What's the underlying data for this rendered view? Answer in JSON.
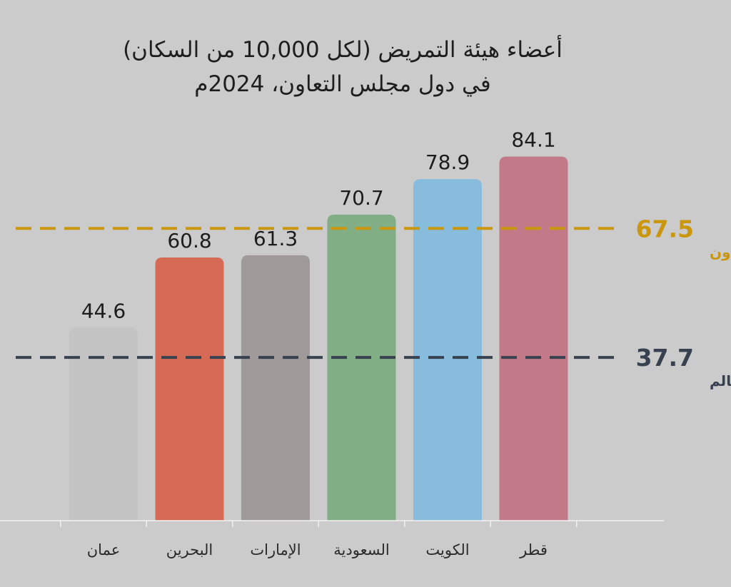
{
  "chart_data": {
    "type": "bar",
    "title_lines": [
      "أعضاء هيئة التمريض (لكل 10,000 من السكان)",
      "في دول مجلس التعاون، 2024م"
    ],
    "categories": [
      "عمان",
      "البحرين",
      "الإمارات",
      "السعودية",
      "الكويت",
      "قطر"
    ],
    "values": [
      44.6,
      60.8,
      61.3,
      70.7,
      78.9,
      84.1
    ],
    "value_labels": [
      "44.6",
      "60.8",
      "61.3",
      "70.7",
      "78.9",
      "84.1"
    ],
    "bar_colors": [
      "#c4c4c4",
      "#d56b55",
      "#9f9a99",
      "#82ae86",
      "#88bcdd",
      "#c27a88"
    ],
    "ylim": [
      0,
      90
    ],
    "reference_lines": [
      {
        "value": 67.5,
        "value_label": "67.5",
        "name": "مجلس التعاون",
        "color": "#c9960c",
        "style": "dashed"
      },
      {
        "value": 37.7,
        "value_label": "37.7",
        "name": "العالم",
        "color": "#374150",
        "style": "dashed"
      }
    ],
    "grid": false,
    "legend": "none"
  }
}
